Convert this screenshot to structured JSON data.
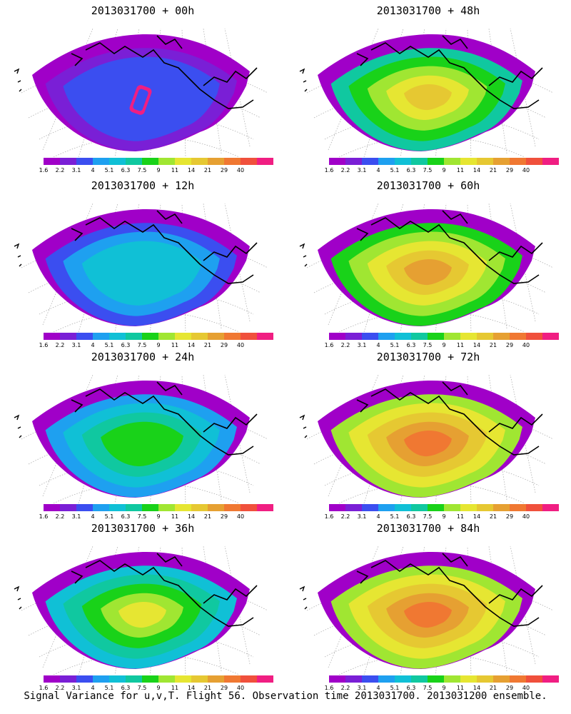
{
  "footer": "Signal Variance for u,v,T. Flight 56. Observation time 2013031700. 2013031200 ensemble.",
  "colorbar": {
    "colors": [
      "#a000c8",
      "#7a1fd6",
      "#3b4ef0",
      "#1ea0f0",
      "#10c0d6",
      "#10c8a0",
      "#19d219",
      "#a0e632",
      "#e6e632",
      "#e6c832",
      "#e6a032",
      "#f07832",
      "#f0503c",
      "#f01e82"
    ],
    "labels": [
      "1.6",
      "2.2",
      "3.1",
      "4",
      "5.1",
      "6.3",
      "7.5",
      "9",
      "11",
      "14",
      "21",
      "29",
      "40"
    ]
  },
  "panels": [
    {
      "id": "00h",
      "title": "2013031700 + 00h",
      "level": 0
    },
    {
      "id": "48h",
      "title": "2013031700 + 48h",
      "level": 4
    },
    {
      "id": "12h",
      "title": "2013031700 + 12h",
      "level": 1
    },
    {
      "id": "60h",
      "title": "2013031700 + 60h",
      "level": 5
    },
    {
      "id": "24h",
      "title": "2013031700 + 24h",
      "level": 2
    },
    {
      "id": "72h",
      "title": "2013031700 + 72h",
      "level": 6
    },
    {
      "id": "36h",
      "title": "2013031700 + 36h",
      "level": 3
    },
    {
      "id": "84h",
      "title": "2013031700 + 84h",
      "level": 7
    }
  ]
}
